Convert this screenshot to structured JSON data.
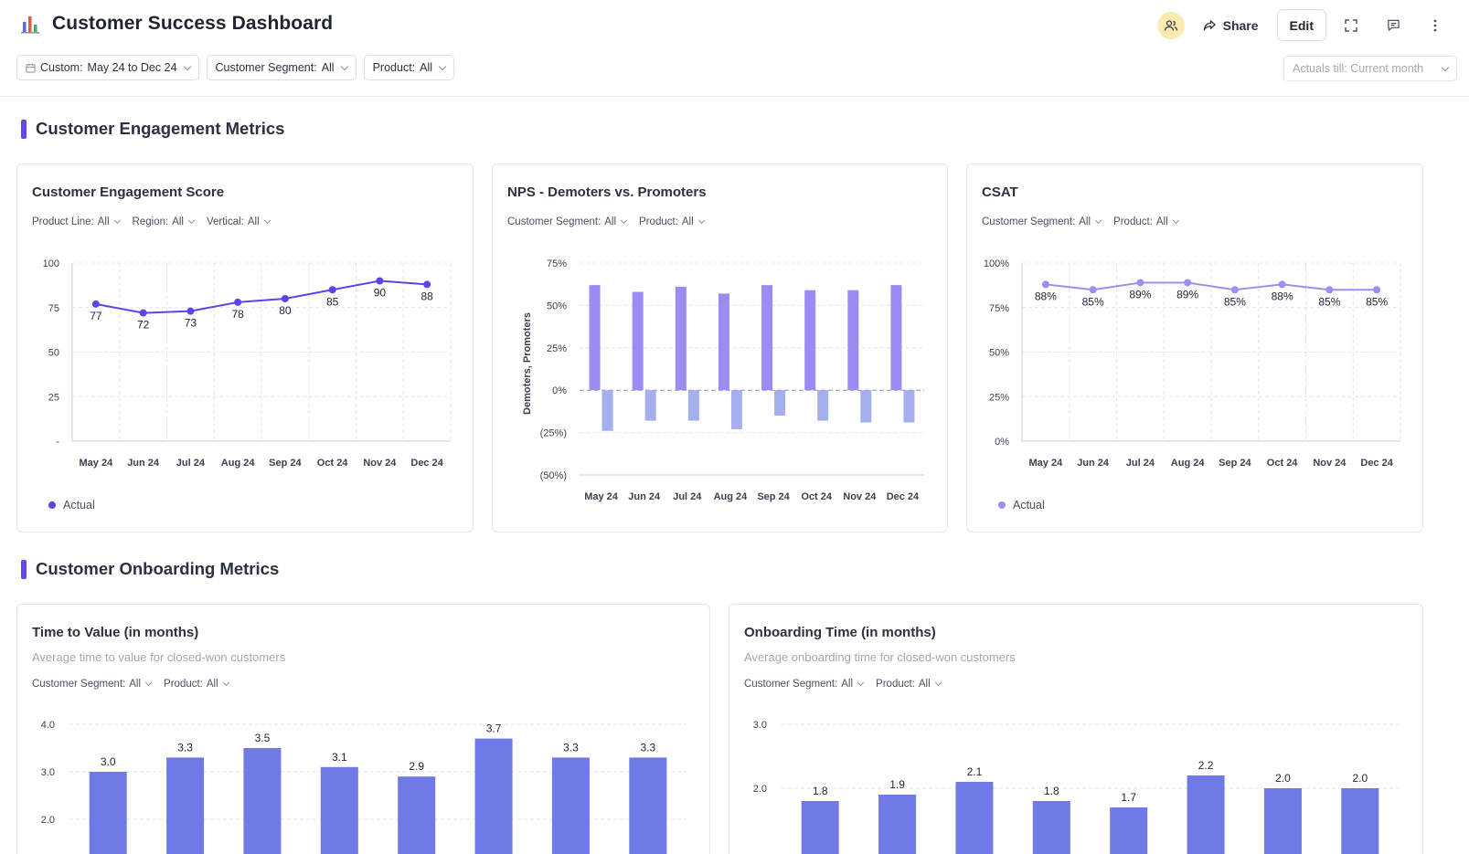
{
  "header": {
    "title": "Customer Success Dashboard",
    "share_label": "Share",
    "edit_label": "Edit"
  },
  "filters": [
    {
      "label": "Custom:",
      "value": "May 24 to Dec 24"
    },
    {
      "label": "Customer Segment:",
      "value": "All"
    },
    {
      "label": "Product:",
      "value": "All"
    }
  ],
  "actuals_till": "Actuals till: Current month",
  "sections": {
    "engagement": "Customer Engagement Metrics",
    "onboarding": "Customer Onboarding Metrics"
  },
  "colors": {
    "accent": "#5b4bf0",
    "engagement_line": "#5b45e8",
    "csat_line": "#9b8ff0",
    "nps_promoters": "#9a8cf2",
    "nps_demoters": "#a5afee",
    "onboarding_bars": "#6f7ae6"
  },
  "cards": {
    "engagement": {
      "title": "Customer Engagement Score",
      "filters": [
        {
          "label": "Product Line:",
          "value": "All"
        },
        {
          "label": "Region:",
          "value": "All"
        },
        {
          "label": "Vertical:",
          "value": "All"
        }
      ],
      "legend": "Actual"
    },
    "nps": {
      "title": "NPS - Demoters vs. Promoters",
      "filters": [
        {
          "label": "Customer Segment:",
          "value": "All"
        },
        {
          "label": "Product:",
          "value": "All"
        }
      ]
    },
    "csat": {
      "title": "CSAT",
      "filters": [
        {
          "label": "Customer Segment:",
          "value": "All"
        },
        {
          "label": "Product:",
          "value": "All"
        }
      ],
      "legend": "Actual"
    },
    "ttv": {
      "title": "Time to Value (in months)",
      "subtitle": "Average time to value for closed-won customers",
      "filters": [
        {
          "label": "Customer Segment:",
          "value": "All"
        },
        {
          "label": "Product:",
          "value": "All"
        }
      ]
    },
    "onboarding": {
      "title": "Onboarding Time (in months)",
      "subtitle": "Average onboarding time for closed-won customers",
      "filters": [
        {
          "label": "Customer Segment:",
          "value": "All"
        },
        {
          "label": "Product:",
          "value": "All"
        }
      ]
    }
  },
  "chart_data": [
    {
      "id": "engagement",
      "type": "line",
      "categories": [
        "May 24",
        "Jun 24",
        "Jul 24",
        "Aug 24",
        "Sep 24",
        "Oct 24",
        "Nov 24",
        "Dec 24"
      ],
      "series": [
        {
          "name": "Actual",
          "values": [
            77,
            72,
            73,
            78,
            80,
            85,
            90,
            88
          ]
        }
      ],
      "yticks": [
        "-",
        "25",
        "50",
        "75",
        "100"
      ],
      "ylim": [
        0,
        100
      ]
    },
    {
      "id": "nps",
      "type": "bar",
      "categories": [
        "May 24",
        "Jun 24",
        "Jul 24",
        "Aug 24",
        "Sep 24",
        "Oct 24",
        "Nov 24",
        "Dec 24"
      ],
      "ylabel": "Demoters, Promoters",
      "series": [
        {
          "values": [
            62,
            58,
            61,
            57,
            62,
            59,
            59,
            62
          ]
        },
        {
          "values": [
            -24,
            -18,
            -18,
            -23,
            -15,
            -18,
            -19,
            -19
          ]
        }
      ],
      "yticks": [
        "(50%)",
        "(25%)",
        "0%",
        "25%",
        "50%",
        "75%"
      ],
      "ylim": [
        -50,
        75
      ]
    },
    {
      "id": "csat",
      "type": "line",
      "categories": [
        "May 24",
        "Jun 24",
        "Jul 24",
        "Aug 24",
        "Sep 24",
        "Oct 24",
        "Nov 24",
        "Dec 24"
      ],
      "series": [
        {
          "name": "Actual",
          "values": [
            88,
            85,
            89,
            89,
            85,
            88,
            85,
            85
          ]
        }
      ],
      "labels": [
        "88%",
        "85%",
        "89%",
        "89%",
        "85%",
        "88%",
        "85%",
        "85%"
      ],
      "yticks": [
        "0%",
        "25%",
        "50%",
        "75%",
        "100%"
      ],
      "ylim": [
        0,
        100
      ]
    },
    {
      "id": "ttv",
      "type": "bar",
      "values": [
        3.0,
        3.3,
        3.5,
        3.1,
        2.9,
        3.7,
        3.3,
        3.3
      ],
      "labels": [
        "3.0",
        "3.3",
        "3.5",
        "3.1",
        "2.9",
        "3.7",
        "3.3",
        "3.3"
      ],
      "yticks": [
        "2.0",
        "3.0",
        "4.0"
      ],
      "ylim": [
        0,
        4.0
      ]
    },
    {
      "id": "onboarding",
      "type": "bar",
      "values": [
        1.8,
        1.9,
        2.1,
        1.8,
        1.7,
        2.2,
        2.0,
        2.0
      ],
      "labels": [
        "1.8",
        "1.9",
        "2.1",
        "1.8",
        "1.7",
        "2.2",
        "2.0",
        "2.0"
      ],
      "yticks": [
        "2.0",
        "3.0"
      ],
      "ylim": [
        0,
        3.0
      ]
    }
  ]
}
